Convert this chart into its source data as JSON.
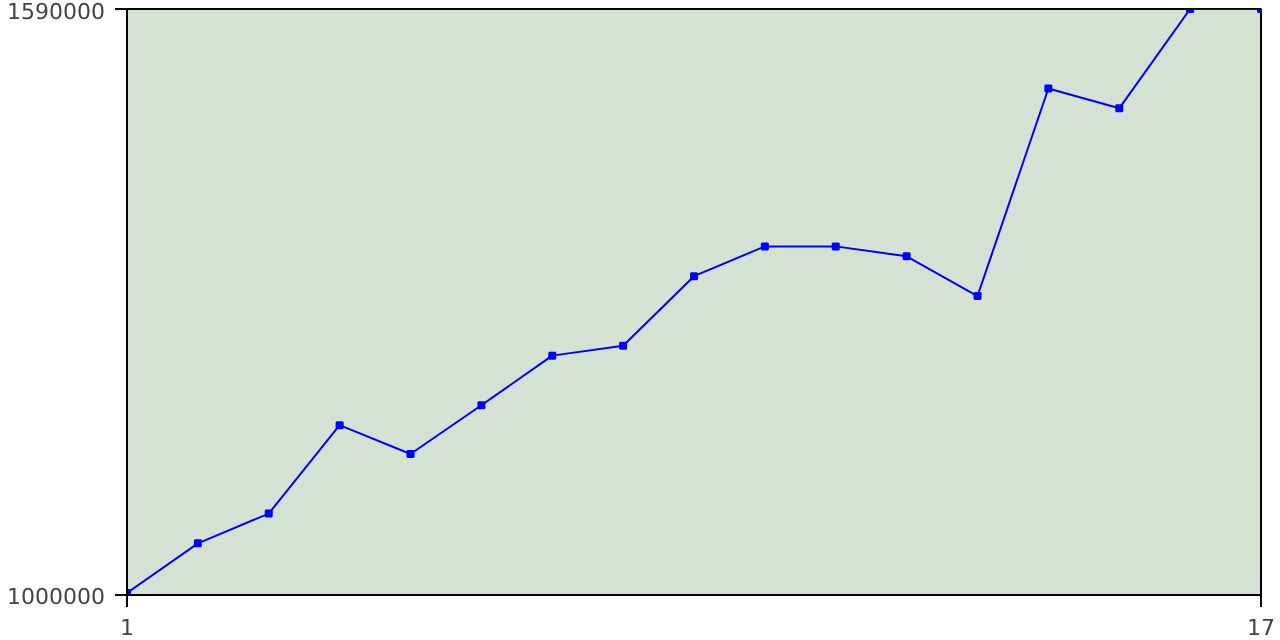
{
  "chart_data": {
    "type": "line",
    "x": [
      1,
      2,
      3,
      4,
      5,
      6,
      7,
      8,
      9,
      10,
      11,
      12,
      13,
      14,
      15,
      16,
      17
    ],
    "series": [
      {
        "color": "#0000ff",
        "values": [
          1002000,
          1052000,
          1082000,
          1171000,
          1142000,
          1191000,
          1241000,
          1251000,
          1321000,
          1351000,
          1351000,
          1341000,
          1301000,
          1510000,
          1490000,
          1590000,
          1590000
        ]
      }
    ],
    "xlim": [
      1,
      17
    ],
    "xticks": [
      1,
      17
    ],
    "ylim": [
      1000000,
      1590000
    ],
    "yticks": [
      1000000,
      1590000
    ],
    "marker": "square",
    "line_style": "solid"
  }
}
